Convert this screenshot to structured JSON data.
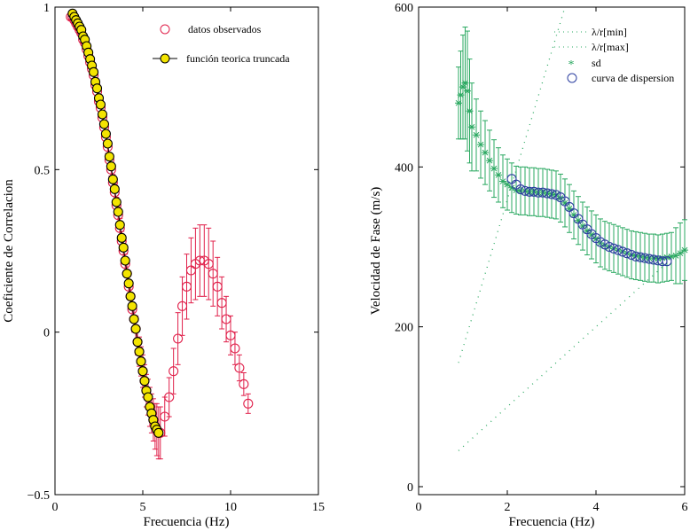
{
  "chart_data": [
    {
      "type": "scatter",
      "xlabel": "Frecuencia (Hz)",
      "ylabel": "Coeficiente de Correlacion",
      "xlim": [
        0,
        15
      ],
      "ylim": [
        -0.5,
        1
      ],
      "xticks": [
        "0",
        "5",
        "10",
        "15"
      ],
      "yticks": [
        "−0.5",
        "0",
        "0.5",
        "1"
      ],
      "legend_position": "top-right",
      "grid": false,
      "series": [
        {
          "name": "datos observados",
          "color": "#e0204a",
          "marker": "circle",
          "x": [
            0.9,
            1.0,
            1.1,
            1.2,
            1.3,
            1.4,
            1.5,
            1.6,
            1.7,
            1.8,
            1.9,
            2.0,
            2.1,
            2.2,
            2.3,
            2.4,
            2.5,
            2.6,
            2.7,
            2.8,
            2.9,
            3.0,
            3.1,
            3.2,
            3.3,
            3.4,
            3.5,
            3.6,
            3.7,
            3.8,
            3.9,
            4.0,
            4.1,
            4.2,
            4.3,
            4.4,
            4.5,
            4.6,
            4.7,
            4.8,
            4.9,
            5.0,
            5.1,
            5.2,
            5.3,
            5.4,
            5.5,
            5.6,
            5.7,
            5.8,
            5.9,
            6.0,
            6.25,
            6.5,
            6.75,
            7.0,
            7.25,
            7.5,
            7.75,
            8.0,
            8.25,
            8.5,
            8.75,
            9.0,
            9.25,
            9.5,
            9.75,
            10.0,
            10.25,
            10.5,
            10.75,
            11.0
          ],
          "y": [
            0.97,
            0.97,
            0.96,
            0.95,
            0.94,
            0.93,
            0.92,
            0.9,
            0.89,
            0.87,
            0.85,
            0.83,
            0.81,
            0.79,
            0.76,
            0.74,
            0.71,
            0.69,
            0.66,
            0.63,
            0.6,
            0.57,
            0.53,
            0.5,
            0.46,
            0.43,
            0.39,
            0.36,
            0.32,
            0.28,
            0.25,
            0.21,
            0.18,
            0.14,
            0.11,
            0.07,
            0.04,
            0.01,
            -0.03,
            -0.06,
            -0.09,
            -0.12,
            -0.15,
            -0.18,
            -0.2,
            -0.23,
            -0.25,
            -0.27,
            -0.29,
            -0.3,
            -0.31,
            -0.31,
            -0.26,
            -0.2,
            -0.12,
            -0.02,
            0.08,
            0.14,
            0.19,
            0.21,
            0.22,
            0.22,
            0.21,
            0.18,
            0.14,
            0.09,
            0.04,
            -0.01,
            -0.05,
            -0.11,
            -0.16,
            -0.22
          ],
          "err": [
            0.01,
            0.01,
            0.01,
            0.01,
            0.01,
            0.01,
            0.01,
            0.01,
            0.01,
            0.01,
            0.01,
            0.01,
            0.01,
            0.01,
            0.015,
            0.015,
            0.015,
            0.015,
            0.02,
            0.02,
            0.02,
            0.02,
            0.02,
            0.02,
            0.025,
            0.025,
            0.025,
            0.025,
            0.03,
            0.03,
            0.03,
            0.03,
            0.03,
            0.035,
            0.035,
            0.035,
            0.04,
            0.04,
            0.04,
            0.045,
            0.045,
            0.05,
            0.05,
            0.05,
            0.055,
            0.06,
            0.06,
            0.065,
            0.07,
            0.08,
            0.08,
            0.08,
            0.06,
            0.06,
            0.07,
            0.08,
            0.09,
            0.1,
            0.1,
            0.11,
            0.11,
            0.11,
            0.11,
            0.1,
            0.09,
            0.08,
            0.07,
            0.06,
            0.05,
            0.04,
            0.035,
            0.03
          ]
        },
        {
          "name": "función teorica truncada",
          "color": "#000000",
          "fill": "#f3e400",
          "marker": "circle",
          "x": [
            1.0,
            1.1,
            1.2,
            1.3,
            1.4,
            1.5,
            1.6,
            1.7,
            1.8,
            1.9,
            2.0,
            2.1,
            2.2,
            2.3,
            2.4,
            2.5,
            2.6,
            2.7,
            2.8,
            2.9,
            3.0,
            3.1,
            3.2,
            3.3,
            3.4,
            3.5,
            3.6,
            3.7,
            3.8,
            3.9,
            4.0,
            4.1,
            4.2,
            4.3,
            4.4,
            4.5,
            4.6,
            4.7,
            4.8,
            4.9,
            5.0,
            5.1,
            5.2,
            5.3,
            5.4,
            5.5,
            5.6,
            5.7,
            5.8,
            5.9
          ],
          "y": [
            0.98,
            0.97,
            0.96,
            0.95,
            0.94,
            0.93,
            0.91,
            0.9,
            0.88,
            0.86,
            0.84,
            0.82,
            0.8,
            0.77,
            0.75,
            0.72,
            0.7,
            0.67,
            0.64,
            0.61,
            0.58,
            0.54,
            0.51,
            0.47,
            0.44,
            0.4,
            0.37,
            0.33,
            0.29,
            0.26,
            0.22,
            0.18,
            0.15,
            0.11,
            0.08,
            0.04,
            0.01,
            -0.03,
            -0.06,
            -0.09,
            -0.12,
            -0.15,
            -0.18,
            -0.2,
            -0.23,
            -0.25,
            -0.27,
            -0.29,
            -0.3,
            -0.31
          ]
        }
      ]
    },
    {
      "type": "scatter",
      "xlabel": "Frecuencia (Hz)",
      "ylabel": "Velocidad de Fase (m/s)",
      "xlim": [
        0,
        6
      ],
      "ylim": [
        -10,
        600
      ],
      "xticks": [
        "0",
        "2",
        "4",
        "6"
      ],
      "yticks": [
        "0",
        "200",
        "400",
        "600"
      ],
      "legend_position": "top-right",
      "grid": false,
      "series": [
        {
          "name": "λ/r[min]",
          "color": "#2aa860",
          "style": "dotted",
          "x": [
            0.9,
            3.3
          ],
          "y": [
            155,
            600
          ]
        },
        {
          "name": "λ/r[max]",
          "color": "#2aa860",
          "style": "dotted",
          "x": [
            0.9,
            6.0
          ],
          "y": [
            45,
            300
          ]
        },
        {
          "name": "sd",
          "color": "#2aa860",
          "marker": "asterisk",
          "x": [
            0.9,
            0.95,
            1.0,
            1.05,
            1.1,
            1.15,
            1.2,
            1.3,
            1.4,
            1.5,
            1.6,
            1.7,
            1.8,
            1.9,
            2.0,
            2.1,
            2.2,
            2.3,
            2.4,
            2.5,
            2.6,
            2.7,
            2.8,
            2.9,
            3.0,
            3.1,
            3.2,
            3.3,
            3.4,
            3.5,
            3.6,
            3.7,
            3.8,
            3.9,
            4.0,
            4.1,
            4.2,
            4.3,
            4.4,
            4.5,
            4.6,
            4.7,
            4.8,
            4.9,
            5.0,
            5.1,
            5.2,
            5.3,
            5.4,
            5.5,
            5.6,
            5.7,
            5.8,
            5.9,
            6.0
          ],
          "y": [
            480,
            490,
            500,
            505,
            495,
            470,
            450,
            440,
            428,
            418,
            408,
            398,
            390,
            382,
            378,
            374,
            371,
            370,
            370,
            369,
            369,
            368,
            368,
            367,
            366,
            365,
            361,
            355,
            348,
            340,
            333,
            326,
            320,
            315,
            310,
            305,
            302,
            300,
            298,
            296,
            294,
            292,
            290,
            289,
            288,
            287,
            286,
            286,
            285,
            286,
            287,
            288,
            289,
            292,
            296
          ],
          "err": [
            45,
            55,
            65,
            70,
            75,
            65,
            55,
            45,
            42,
            40,
            38,
            36,
            34,
            33,
            32,
            31,
            30,
            30,
            30,
            30,
            30,
            30,
            30,
            30,
            30,
            30,
            30,
            30,
            30,
            30,
            30,
            30,
            30,
            30,
            30,
            30,
            30,
            30,
            30,
            30,
            30,
            30,
            30,
            30,
            30,
            30,
            30,
            30,
            30,
            30,
            30,
            30,
            35,
            38,
            38
          ]
        },
        {
          "name": "curva de dispersion",
          "color": "#2c3fa0",
          "marker": "circle",
          "x": [
            2.1,
            2.2,
            2.3,
            2.4,
            2.5,
            2.6,
            2.7,
            2.8,
            2.9,
            3.0,
            3.1,
            3.2,
            3.3,
            3.4,
            3.5,
            3.6,
            3.7,
            3.8,
            3.9,
            4.0,
            4.1,
            4.2,
            4.3,
            4.4,
            4.5,
            4.6,
            4.7,
            4.8,
            4.9,
            5.0,
            5.1,
            5.2,
            5.3,
            5.4,
            5.5,
            5.6
          ],
          "y": [
            385,
            378,
            372,
            370,
            369,
            369,
            368,
            368,
            367,
            366,
            365,
            362,
            357,
            350,
            342,
            335,
            328,
            322,
            316,
            311,
            306,
            303,
            300,
            298,
            296,
            294,
            292,
            290,
            288,
            287,
            286,
            285,
            284,
            283,
            282,
            282
          ]
        }
      ]
    }
  ]
}
